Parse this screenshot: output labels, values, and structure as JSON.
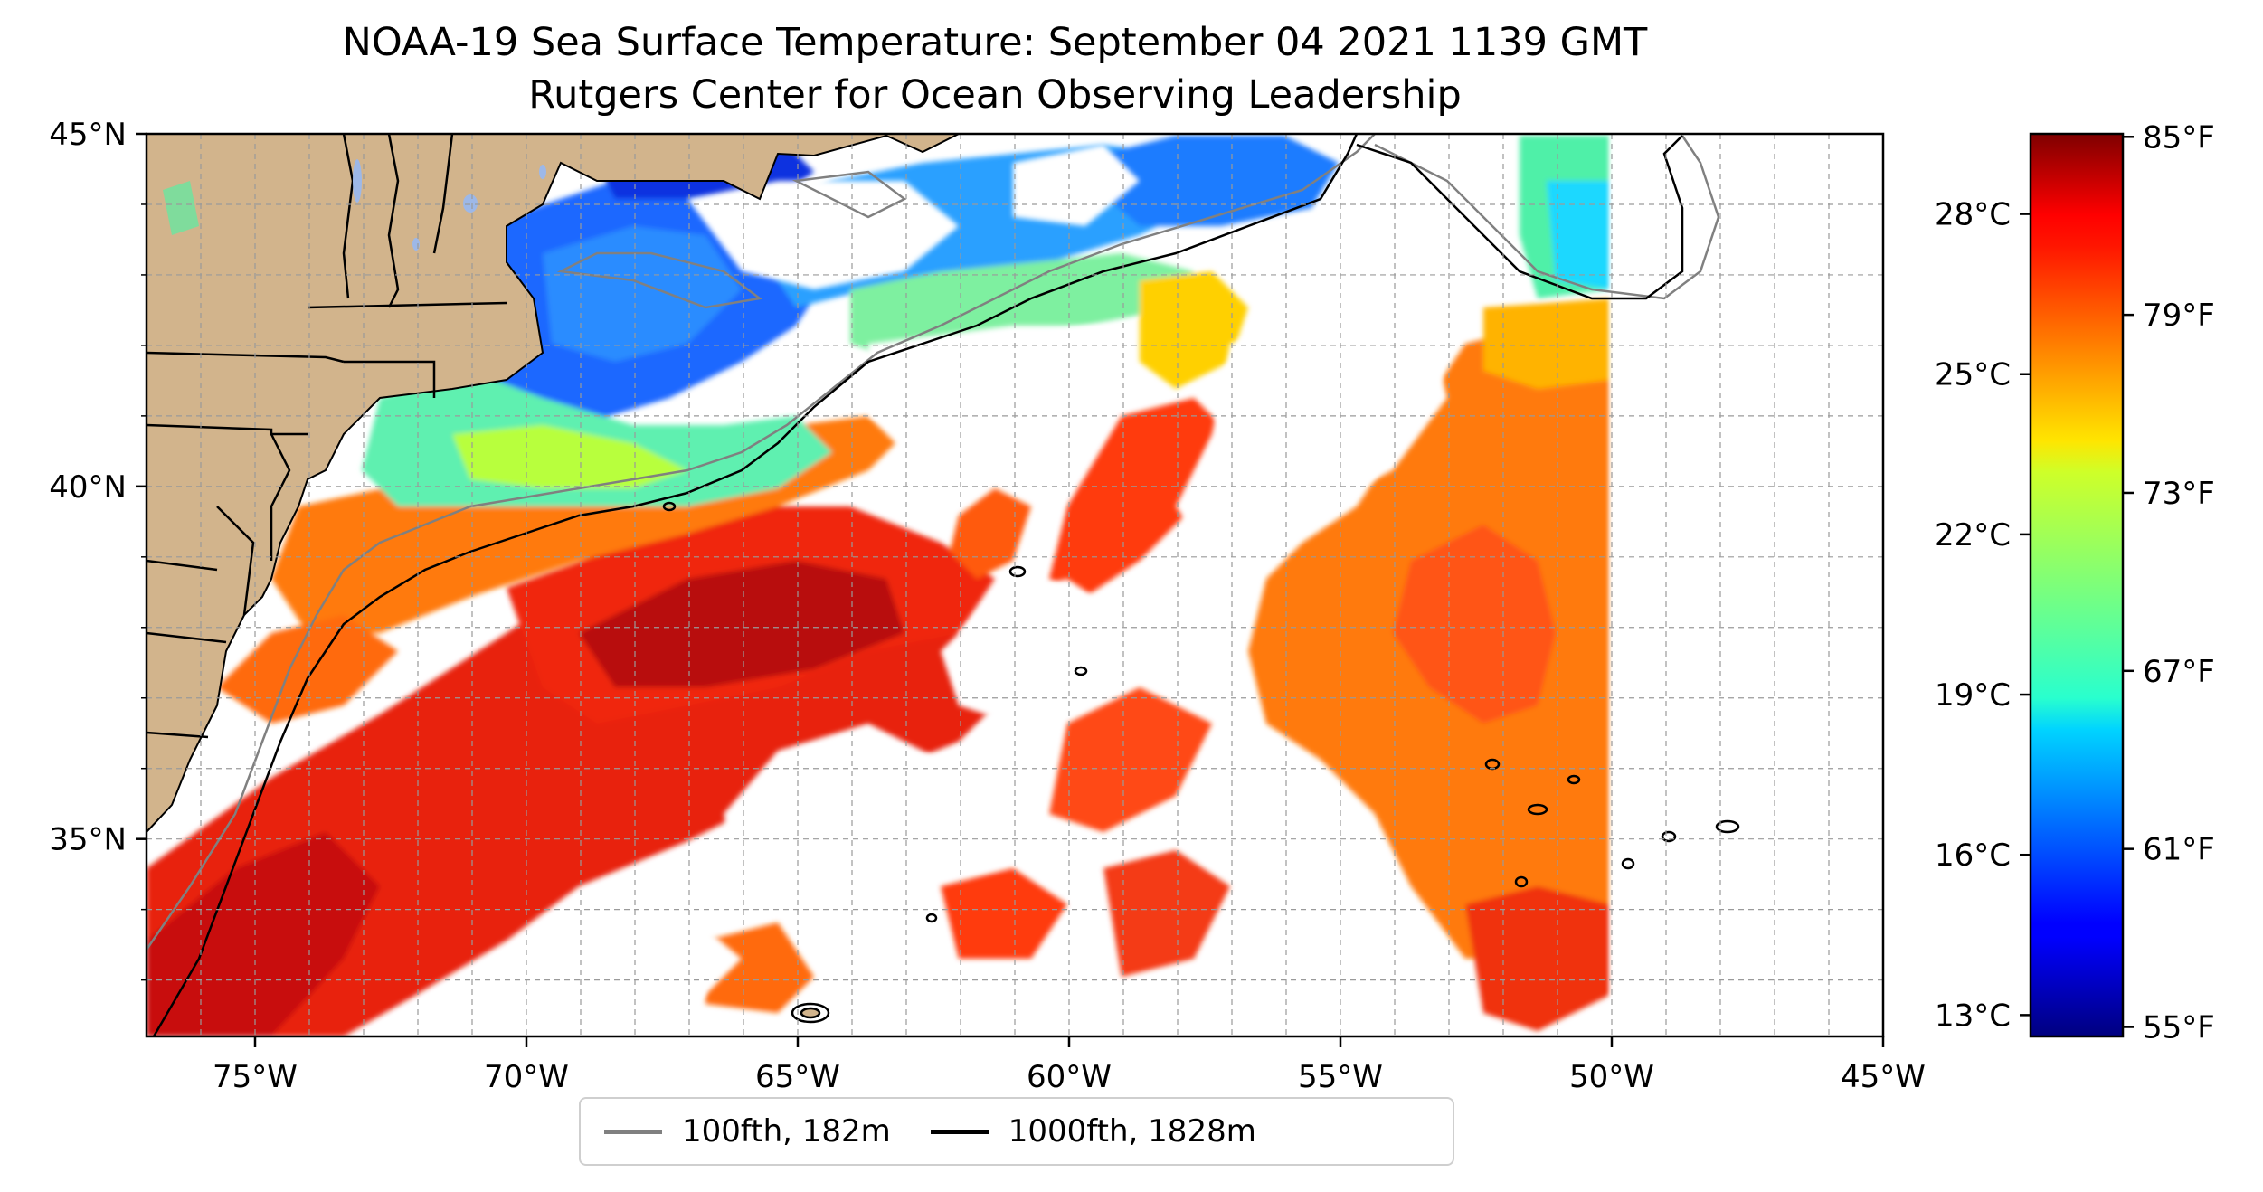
{
  "title": {
    "line1": "NOAA-19 Sea Surface Temperature: September 04 2021 1139 GMT",
    "line2": "Rutgers Center for Ocean Observing Leadership"
  },
  "map": {
    "lat_labels": [
      "45°N",
      "40°N",
      "35°N"
    ],
    "lon_labels": [
      "75°W",
      "70°W",
      "65°W",
      "60°W",
      "55°W",
      "50°W",
      "45°W"
    ],
    "lat_values": [
      45,
      40,
      35
    ],
    "lon_values": [
      -75,
      -70,
      -65,
      -60,
      -55,
      -50,
      -45
    ],
    "extent": {
      "lon_min": -77,
      "lon_max": -45,
      "lat_min": 32.2,
      "lat_max": 45
    },
    "gridlines": "on (dashed)",
    "land_color": "#d2b48c",
    "lake_color": "#9db8e8"
  },
  "legend": {
    "items": [
      {
        "label": "100fth, 182m",
        "color": "#808080"
      },
      {
        "label": "1000fth, 1828m",
        "color": "#000000"
      }
    ]
  },
  "colorbar": {
    "colormap": "jet",
    "celsius_labels": [
      "28°C",
      "25°C",
      "22°C",
      "19°C",
      "16°C",
      "13°C"
    ],
    "celsius_values": [
      28,
      25,
      22,
      19,
      16,
      13
    ],
    "fahrenheit_labels": [
      "85°F",
      "79°F",
      "73°F",
      "67°F",
      "61°F",
      "55°F"
    ],
    "fahrenheit_values": [
      85,
      79,
      73,
      67,
      61,
      55
    ],
    "range_celsius": [
      12.6,
      29.5
    ]
  }
}
